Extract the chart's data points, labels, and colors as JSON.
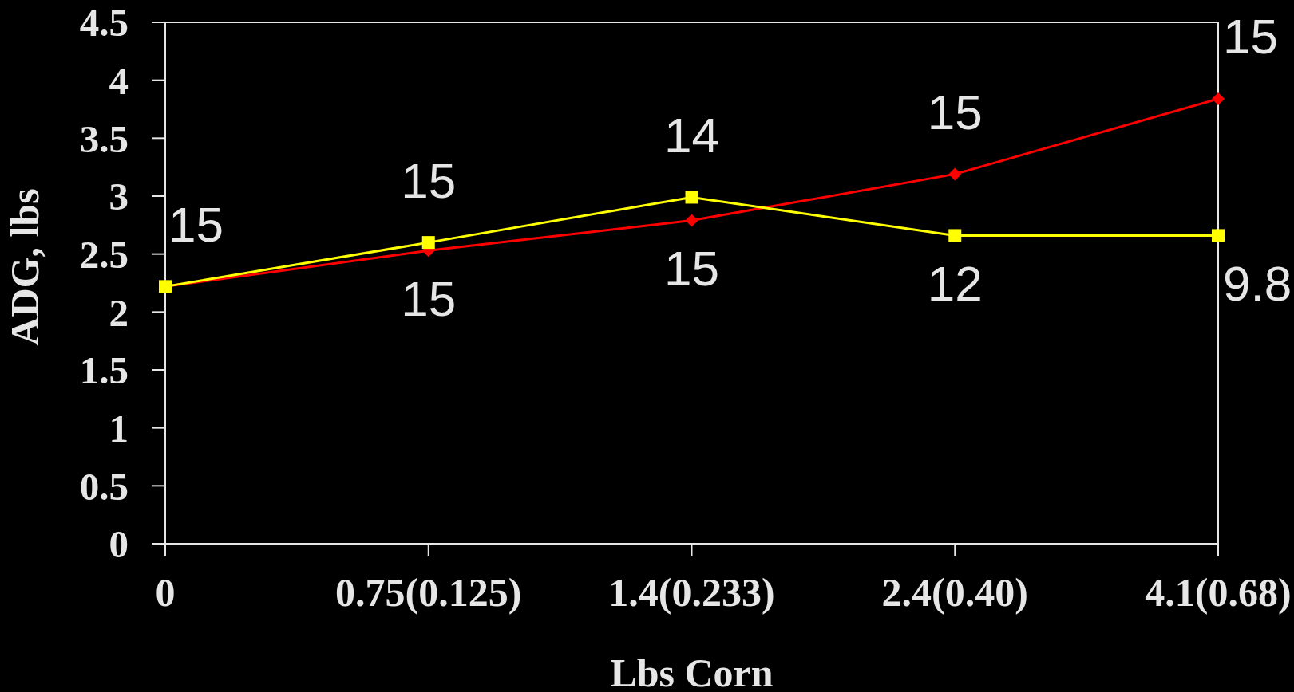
{
  "chart_data": {
    "type": "line",
    "xlabel": "Lbs Corn",
    "ylabel": "ADG, lbs",
    "categories": [
      "0",
      "0.75(0.125)",
      "1.4(0.233)",
      "2.4(0.40)",
      "4.1(0.68)"
    ],
    "series": [
      {
        "color": "#ff0000",
        "marker": "diamond",
        "values": [
          2.22,
          2.53,
          2.79,
          3.19,
          3.84
        ]
      },
      {
        "color": "#ffff00",
        "marker": "square",
        "values": [
          2.22,
          2.6,
          2.99,
          2.66,
          2.66
        ]
      }
    ],
    "annotations": [
      {
        "text": "15",
        "x": "0",
        "y": 2.22
      },
      {
        "text": "15",
        "x": "0.75(0.125)",
        "y": 2.53
      },
      {
        "text": "15",
        "x": "1.4(0.233)",
        "y": 2.79
      },
      {
        "text": "15",
        "x": "2.4(0.40)",
        "y": 3.19
      },
      {
        "text": "15",
        "x": "4.1(0.68)",
        "y": 3.84
      },
      {
        "text": "15",
        "x": "0.75(0.125)",
        "y": 2.6
      },
      {
        "text": "14",
        "x": "1.4(0.233)",
        "y": 2.99
      },
      {
        "text": "12",
        "x": "2.4(0.40)",
        "y": 2.66
      },
      {
        "text": "9.8",
        "x": "4.1(0.68)",
        "y": 2.66
      }
    ],
    "ylim": [
      0,
      4.5
    ],
    "yticks": [
      0,
      0.5,
      1,
      1.5,
      2,
      2.5,
      3,
      3.5,
      4,
      4.5
    ]
  }
}
